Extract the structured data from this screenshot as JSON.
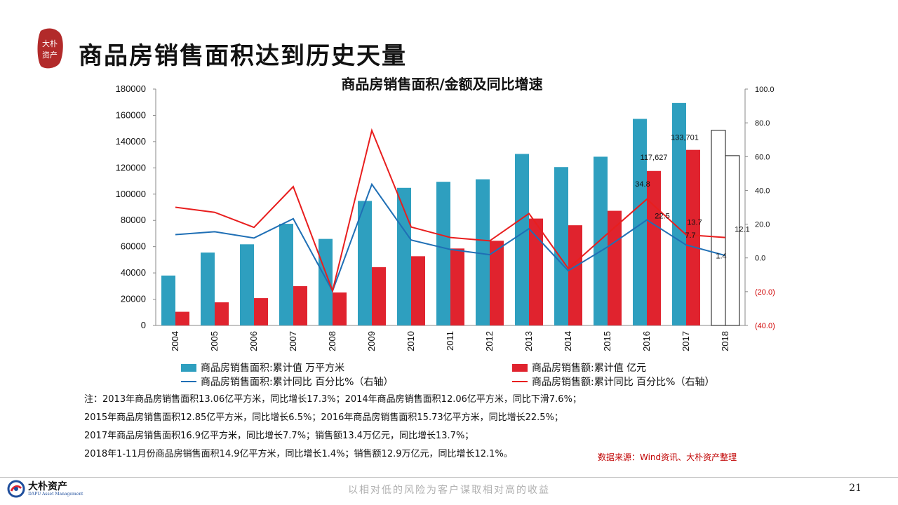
{
  "slide": {
    "title": "商品房销售面积达到历史天量",
    "logo_text": "大朴资产",
    "page_number": "21",
    "slogan": "以相对低的风险为客户谋取相对高的收益",
    "footer_brand": "大朴资产",
    "footer_sub": "DAPU Asset Management",
    "source": "数据来源：Wind资讯、大朴资产整理",
    "notes": [
      "注：2013年商品房销售面积13.06亿平方米，同比增长17.3%；2014年商品房销售面积12.06亿平方米，同比下滑7.6%；",
      "2015年商品房销售面积12.85亿平方米，同比增长6.5%；2016年商品房销售面积15.73亿平方米，同比增长22.5%；",
      "2017年商品房销售面积16.9亿平方米，同比增长7.7%；销售额13.4万亿元，同比增长13.7%；",
      "2018年1-11月份商品房销售面积14.9亿平方米，同比增长1.4%；销售额12.9万亿元，同比增长12.1%。"
    ]
  },
  "colors": {
    "area_bar": "#2e9fbf",
    "amount_bar": "#e0232e",
    "area_line": "#1f6fb5",
    "amount_line": "#e81e1e",
    "axis_negative": "#d00000"
  },
  "chart_data": {
    "type": "bar",
    "title": "商品房销售面积/金额及同比增速",
    "categories": [
      "2004",
      "2005",
      "2006",
      "2007",
      "2008",
      "2009",
      "2010",
      "2011",
      "2012",
      "2013",
      "2014",
      "2015",
      "2016",
      "2017",
      "2018"
    ],
    "ylim": [
      0,
      180000
    ],
    "yticks": [
      "0",
      "20000",
      "40000",
      "60000",
      "80000",
      "100000",
      "120000",
      "140000",
      "160000",
      "180000"
    ],
    "y2lim": [
      -40,
      100
    ],
    "y2ticks": [
      "(40.0)",
      "(20.0)",
      "0.0",
      "20.0",
      "40.0",
      "60.0",
      "80.0",
      "100.0"
    ],
    "legend_placement": "bottom",
    "bars": [
      {
        "name": "商品房销售面积:累计值 万平方米",
        "values": [
          38000,
          55500,
          61800,
          77400,
          65900,
          94800,
          104800,
          109400,
          111300,
          130600,
          120600,
          128500,
          157300,
          169400,
          148600
        ],
        "hollow_last": true
      },
      {
        "name": "商品房销售额:累计值 亿元",
        "values": [
          10400,
          17600,
          20800,
          29900,
          25100,
          44400,
          52700,
          58600,
          64500,
          81400,
          76300,
          87300,
          117627,
          133701,
          129300
        ],
        "hollow_last": true
      }
    ],
    "lines": [
      {
        "name": "商品房销售面积:累计同比 百分比%（右轴）",
        "values": [
          13.8,
          15.5,
          11.8,
          23.2,
          -19.6,
          43.6,
          10.6,
          5.0,
          1.9,
          17.3,
          -7.6,
          6.5,
          22.5,
          7.7,
          1.4
        ]
      },
      {
        "name": "商品房销售额:累计同比 百分比%（右轴）",
        "values": [
          30.0,
          27.0,
          18.1,
          42.2,
          -19.5,
          75.5,
          18.3,
          12.1,
          10.1,
          26.3,
          -6.3,
          14.4,
          34.8,
          13.7,
          12.1
        ]
      }
    ],
    "data_labels": [
      {
        "text": "117,627",
        "series": "amount",
        "index": 12
      },
      {
        "text": "133,701",
        "series": "amount",
        "index": 13
      },
      {
        "text": "34.8",
        "series": "amount_pct",
        "index": 12
      },
      {
        "text": "22.5",
        "series": "area_pct",
        "index": 12
      },
      {
        "text": "13.7",
        "series": "amount_pct",
        "index": 13
      },
      {
        "text": "7.7",
        "series": "area_pct",
        "index": 13
      },
      {
        "text": "12.1",
        "series": "amount_pct",
        "index": 14
      },
      {
        "text": "1.4",
        "series": "area_pct",
        "index": 14
      }
    ]
  }
}
